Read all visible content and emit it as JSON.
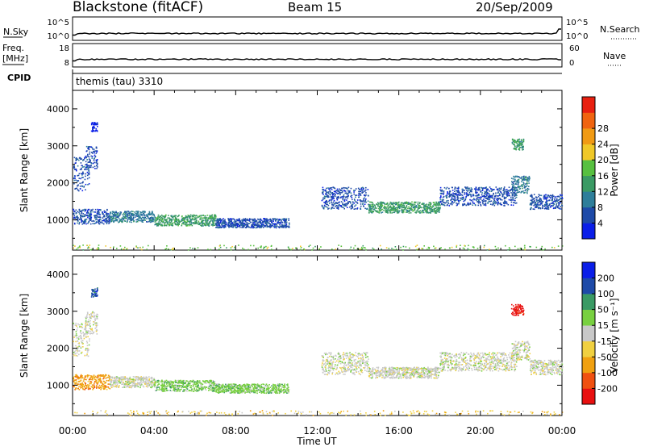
{
  "header": {
    "station": "Blackstone (fitACF)",
    "beam": "Beam 15",
    "date": "20/Sep/2009"
  },
  "params": {
    "nsky_label": "N.Sky",
    "nsearch_label": "N.Search",
    "freq_label": "Freq.",
    "freq_unit": "[MHz]",
    "nave_label": "Nave",
    "cpid_label": "CPID",
    "cpid_value": "themis (tau) 3310",
    "nsky_ticks": [
      "10^5",
      "10^0"
    ],
    "nsearch_ticks": [
      "10^5",
      "10^0"
    ],
    "freq_ticks": [
      "18",
      "8"
    ],
    "nave_ticks": [
      "60",
      "0"
    ]
  },
  "colors": {
    "power": [
      "#0a1ee8",
      "#1e4aa8",
      "#2e7e9a",
      "#3a9a64",
      "#57c040",
      "#f0c828",
      "#f09a14",
      "#f06410",
      "#e82010"
    ],
    "velocity": [
      "#e81010",
      "#f05010",
      "#f0a010",
      "#f0d040",
      "#c8c8c8",
      "#78d040",
      "#3a9a64",
      "#1e4aa8",
      "#0a1ee8"
    ]
  },
  "chart_data": [
    {
      "type": "heatmap",
      "name": "power",
      "title": "",
      "xlabel": "Time UT",
      "ylabel": "Slant Range [km]",
      "xlim": [
        0,
        24
      ],
      "ylim": [
        180,
        4500
      ],
      "x_ticks": [
        "00:00",
        "04:00",
        "08:00",
        "12:00",
        "16:00",
        "20:00",
        "00:00"
      ],
      "y_ticks": [
        1000,
        2000,
        3000,
        4000
      ],
      "colorbar_label": "Power [dB]",
      "colorbar_ticks": [
        4,
        8,
        12,
        16,
        20,
        24,
        28
      ],
      "regions": [
        {
          "t": [
            0.0,
            1.8
          ],
          "r": [
            900,
            1300
          ],
          "level": 1
        },
        {
          "t": [
            1.8,
            4.0
          ],
          "r": [
            950,
            1250
          ],
          "level": 2
        },
        {
          "t": [
            4.0,
            7.0
          ],
          "r": [
            850,
            1150
          ],
          "level": 3
        },
        {
          "t": [
            7.0,
            10.6
          ],
          "r": [
            800,
            1050
          ],
          "level": 1
        },
        {
          "t": [
            0.0,
            0.8
          ],
          "r": [
            1800,
            2700
          ],
          "level": 1
        },
        {
          "t": [
            0.6,
            1.2
          ],
          "r": [
            2400,
            3000
          ],
          "level": 1
        },
        {
          "t": [
            0.9,
            1.2
          ],
          "r": [
            3400,
            3650
          ],
          "level": 0
        },
        {
          "t": [
            12.2,
            14.5
          ],
          "r": [
            1300,
            1900
          ],
          "level": 1
        },
        {
          "t": [
            14.5,
            18.0
          ],
          "r": [
            1200,
            1500
          ],
          "level": 3
        },
        {
          "t": [
            18.0,
            21.8
          ],
          "r": [
            1400,
            1900
          ],
          "level": 1
        },
        {
          "t": [
            21.5,
            22.4
          ],
          "r": [
            1700,
            2200
          ],
          "level": 2
        },
        {
          "t": [
            22.4,
            24.0
          ],
          "r": [
            1300,
            1700
          ],
          "level": 1
        },
        {
          "t": [
            21.5,
            22.1
          ],
          "r": [
            2900,
            3200
          ],
          "level": 3
        },
        {
          "t": [
            0.0,
            24.0
          ],
          "r": [
            200,
            330
          ],
          "level": 4
        }
      ]
    },
    {
      "type": "heatmap",
      "name": "velocity",
      "title": "",
      "xlabel": "Time UT",
      "ylabel": "Slant Range [km]",
      "xlim": [
        0,
        24
      ],
      "ylim": [
        180,
        4500
      ],
      "x_ticks": [
        "00:00",
        "04:00",
        "08:00",
        "12:00",
        "16:00",
        "20:00",
        "00:00"
      ],
      "y_ticks": [
        1000,
        2000,
        3000,
        4000
      ],
      "colorbar_label": "Velocity [m s⁻¹]",
      "colorbar_ticks": [
        -200,
        -100,
        -50,
        -15,
        15,
        50,
        100,
        200
      ],
      "regions": [
        {
          "t": [
            0.0,
            1.8
          ],
          "r": [
            900,
            1300
          ],
          "level": 2
        },
        {
          "t": [
            1.8,
            4.0
          ],
          "r": [
            950,
            1250
          ],
          "level": 4
        },
        {
          "t": [
            4.0,
            7.0
          ],
          "r": [
            850,
            1150
          ],
          "level": 5
        },
        {
          "t": [
            7.0,
            10.6
          ],
          "r": [
            800,
            1050
          ],
          "level": 5
        },
        {
          "t": [
            0.0,
            0.8
          ],
          "r": [
            1800,
            2700
          ],
          "level": 4
        },
        {
          "t": [
            0.6,
            1.2
          ],
          "r": [
            2400,
            3000
          ],
          "level": 4
        },
        {
          "t": [
            0.9,
            1.2
          ],
          "r": [
            3400,
            3650
          ],
          "level": 7
        },
        {
          "t": [
            12.2,
            14.5
          ],
          "r": [
            1300,
            1900
          ],
          "level": 4
        },
        {
          "t": [
            14.5,
            18.0
          ],
          "r": [
            1200,
            1500
          ],
          "level": 4
        },
        {
          "t": [
            18.0,
            21.8
          ],
          "r": [
            1400,
            1900
          ],
          "level": 4
        },
        {
          "t": [
            21.5,
            22.4
          ],
          "r": [
            1700,
            2200
          ],
          "level": 4
        },
        {
          "t": [
            22.4,
            24.0
          ],
          "r": [
            1300,
            1700
          ],
          "level": 4
        },
        {
          "t": [
            21.5,
            22.1
          ],
          "r": [
            2900,
            3200
          ],
          "level": 0
        },
        {
          "t": [
            0.0,
            24.0
          ],
          "r": [
            200,
            330
          ],
          "level": 3
        }
      ]
    }
  ]
}
